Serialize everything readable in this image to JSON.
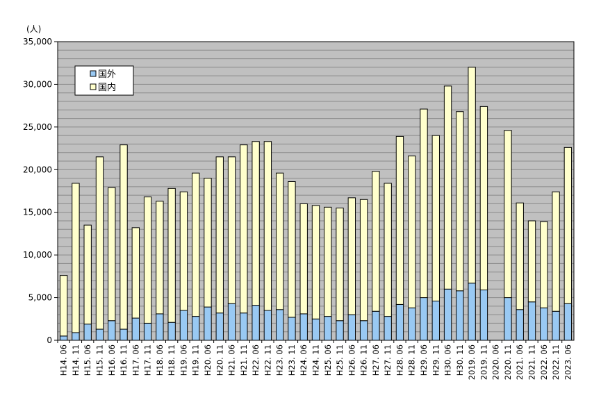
{
  "chart_data": {
    "type": "bar",
    "stacked": true,
    "unit_label": "(人)",
    "ylim": [
      0,
      35000
    ],
    "yticks": [
      "0",
      "5,000",
      "10,000",
      "15,000",
      "20,000",
      "25,000",
      "30,000",
      "35,000"
    ],
    "ytick_values": [
      0,
      5000,
      10000,
      15000,
      20000,
      25000,
      30000,
      35000
    ],
    "grid": true,
    "legend_position": "top-left",
    "plot_background": "#c0c0c0",
    "categories": [
      "H14. 06",
      "H14. 11",
      "H15. 06",
      "H15. 11",
      "H16. 06",
      "H16. 11",
      "H17. 06",
      "H17. 11",
      "H18. 06",
      "H18. 11",
      "H19. 06",
      "H19. 11",
      "H20. 06",
      "H20. 11",
      "H21. 06",
      "H21. 11",
      "H22. 06",
      "H22. 11",
      "H23. 06",
      "H23. 11",
      "H24. 06",
      "H24. 11",
      "H25. 06",
      "H25. 11",
      "H26. 06",
      "H26. 11",
      "H27. 06",
      "H27. 11",
      "H28. 06",
      "H28. 11",
      "H29. 06",
      "H29. 11",
      "H30. 06",
      "H30. 11",
      "2019. 06",
      "2019. 11",
      "2020. 06",
      "2020. 11",
      "2021. 06",
      "2021. 11",
      "2022. 06",
      "2022. 11",
      "2023. 06"
    ],
    "series": [
      {
        "name": "国外",
        "color": "#99c9f3",
        "values": [
          500,
          900,
          1900,
          1300,
          2300,
          1300,
          2600,
          2000,
          3100,
          2100,
          3500,
          2800,
          3900,
          3200,
          4300,
          3200,
          4100,
          3500,
          3600,
          2700,
          3100,
          2500,
          2800,
          2300,
          3000,
          2300,
          3400,
          2800,
          4200,
          3800,
          5000,
          4600,
          6000,
          5800,
          6700,
          5900,
          null,
          5000,
          3600,
          4500,
          3800,
          3400,
          4300
        ]
      },
      {
        "name": "国内",
        "color": "#ffffcc",
        "values": [
          7100,
          17500,
          11600,
          20200,
          15600,
          21600,
          10600,
          14800,
          13200,
          15700,
          13900,
          16800,
          15100,
          18300,
          17200,
          19700,
          19200,
          19800,
          16000,
          15900,
          12900,
          13300,
          12800,
          13200,
          13700,
          14200,
          16400,
          15600,
          19700,
          17800,
          22100,
          19400,
          23800,
          21000,
          25300,
          21500,
          null,
          19600,
          12500,
          9500,
          10100,
          14000,
          18300
        ]
      }
    ]
  }
}
